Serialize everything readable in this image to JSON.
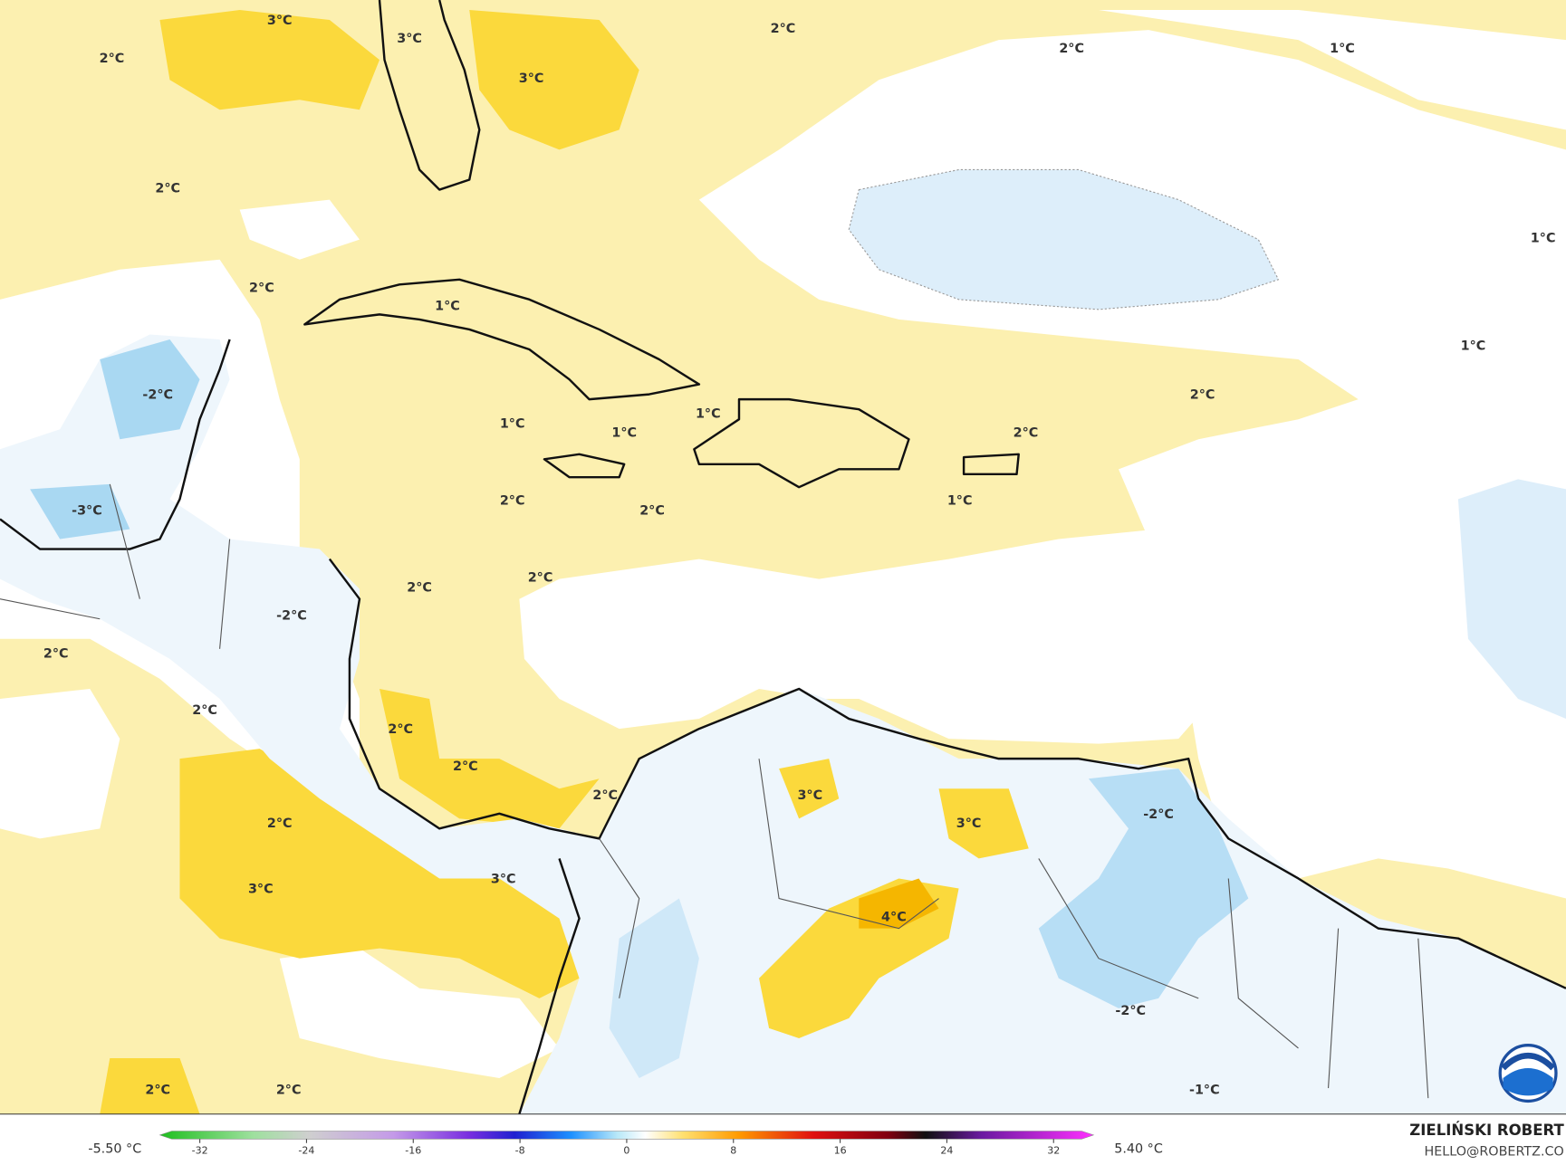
{
  "map": {
    "contour_labels": [
      "3°C",
      "3°C",
      "2°C",
      "2°C",
      "1°C",
      "2°C",
      "3°C",
      "2°C",
      "1°C",
      "2°C",
      "1°C",
      "1°C",
      "-2°C",
      "2°C",
      "1°C",
      "1°C",
      "1°C",
      "2°C",
      "2°C",
      "1°C",
      "-3°C",
      "2°C",
      "2°C",
      "2°C",
      "-2°C",
      "2°C",
      "2°C",
      "2°C",
      "2°C",
      "2°C",
      "3°C",
      "-2°C",
      "2°C",
      "3°C",
      "3°C",
      "3°C",
      "4°C",
      "-2°C",
      "2°C",
      "2°C",
      "-1°C"
    ]
  },
  "colorbar": {
    "min_label": "-5.50 °C",
    "max_label": "5.40 °C",
    "lim": [
      -35,
      35
    ],
    "ticks": [
      -32,
      -24,
      -16,
      -8,
      0,
      8,
      16,
      24,
      32
    ]
  },
  "credit": {
    "author": "ZIELIŃSKI ROBERT",
    "email": "HELLO@ROBERTZ.CO"
  }
}
